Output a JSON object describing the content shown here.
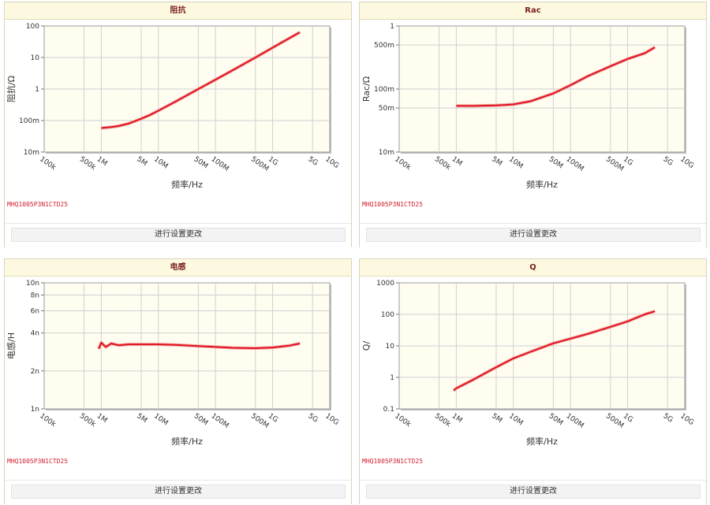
{
  "panels": [
    {
      "title": "阻抗",
      "part_number": "MHQ1005P3N1CTD25",
      "settings_button": "进行设置更改"
    },
    {
      "title": "Rac",
      "part_number": "MHQ1005P3N1CTD25",
      "settings_button": "进行设置更改"
    },
    {
      "title": "电感",
      "part_number": "MHQ1005P3N1CTD25",
      "settings_button": "进行设置更改"
    },
    {
      "title": "Q",
      "part_number": "MHQ1005P3N1CTD25",
      "settings_button": "进行设置更改"
    }
  ],
  "colors": {
    "series": "#e0141e",
    "plot_bg": "#fffdf0",
    "grid": "#cfcfcf"
  },
  "chart_data": [
    {
      "type": "line",
      "title": "阻抗",
      "xlabel": "频率/Hz",
      "ylabel": "阻抗/Ω",
      "x_scale": "log",
      "y_scale": "log",
      "xlim": [
        100000,
        10000000000
      ],
      "ylim": [
        0.01,
        100
      ],
      "x_ticks": [
        100000,
        500000,
        1000000,
        5000000,
        10000000,
        50000000,
        100000000,
        500000000,
        1000000000,
        5000000000,
        10000000000
      ],
      "x_tick_labels": [
        "100k",
        "500k",
        "1M",
        "5M",
        "10M",
        "50M",
        "100M",
        "500M",
        "1G",
        "5G",
        "10G"
      ],
      "y_ticks": [
        0.01,
        0.1,
        1,
        10,
        100
      ],
      "y_tick_labels": [
        "10m",
        "100m",
        "1",
        "10",
        "100"
      ],
      "grid": true,
      "series": [
        {
          "x": [
            1000000,
            1500000,
            2000000,
            3000000,
            5000000,
            7000000,
            10000000,
            20000000,
            50000000,
            100000000,
            200000000,
            500000000,
            1000000000,
            2000000000,
            3000000000
          ],
          "y": [
            0.058,
            0.062,
            0.067,
            0.08,
            0.114,
            0.148,
            0.205,
            0.4,
            1.0,
            1.98,
            3.95,
            10.0,
            20.5,
            42.0,
            63.0
          ]
        }
      ]
    },
    {
      "type": "line",
      "title": "Rac",
      "xlabel": "频率/Hz",
      "ylabel": "Rac/Ω",
      "x_scale": "log",
      "y_scale": "log",
      "xlim": [
        100000,
        10000000000
      ],
      "ylim": [
        0.01,
        1
      ],
      "x_ticks": [
        100000,
        500000,
        1000000,
        5000000,
        10000000,
        50000000,
        100000000,
        500000000,
        1000000000,
        5000000000,
        10000000000
      ],
      "x_tick_labels": [
        "100k",
        "500k",
        "1M",
        "5M",
        "10M",
        "50M",
        "100M",
        "500M",
        "1G",
        "5G",
        "10G"
      ],
      "y_ticks": [
        0.01,
        0.05,
        0.1,
        0.5,
        1
      ],
      "y_tick_labels": [
        "10m",
        "50m",
        "100m",
        "500m",
        "1"
      ],
      "grid": true,
      "series": [
        {
          "x": [
            1000000,
            2000000,
            5000000,
            10000000,
            20000000,
            50000000,
            100000000,
            200000000,
            500000000,
            1000000000,
            2000000000,
            3000000000
          ],
          "y": [
            0.054,
            0.054,
            0.055,
            0.057,
            0.064,
            0.085,
            0.115,
            0.16,
            0.23,
            0.3,
            0.37,
            0.46
          ]
        }
      ]
    },
    {
      "type": "line",
      "title": "电感",
      "xlabel": "频率/Hz",
      "ylabel": "电感/H",
      "x_scale": "log",
      "y_scale": "log",
      "xlim": [
        100000,
        10000000000
      ],
      "ylim": [
        1e-09,
        1e-08
      ],
      "x_ticks": [
        100000,
        500000,
        1000000,
        5000000,
        10000000,
        50000000,
        100000000,
        500000000,
        1000000000,
        5000000000,
        10000000000
      ],
      "x_tick_labels": [
        "100k",
        "500k",
        "1M",
        "5M",
        "10M",
        "50M",
        "100M",
        "500M",
        "1G",
        "5G",
        "10G"
      ],
      "y_ticks": [
        1e-09,
        2e-09,
        4e-09,
        6e-09,
        8e-09,
        1e-08
      ],
      "y_tick_labels": [
        "1n",
        "2n",
        "4n",
        "6n",
        "8n",
        "10n"
      ],
      "grid": true,
      "series": [
        {
          "x": [
            900000,
            1000000,
            1200000,
            1500000,
            2000000,
            3000000,
            5000000,
            10000000,
            20000000,
            50000000,
            100000000,
            200000000,
            500000000,
            1000000000,
            2000000000,
            3000000000
          ],
          "y": [
            3e-09,
            3.35e-09,
            3.1e-09,
            3.3e-09,
            3.2e-09,
            3.25e-09,
            3.25e-09,
            3.25e-09,
            3.22e-09,
            3.15e-09,
            3.1e-09,
            3.05e-09,
            3.03e-09,
            3.07e-09,
            3.18e-09,
            3.3e-09
          ]
        }
      ]
    },
    {
      "type": "line",
      "title": "Q",
      "xlabel": "频率/Hz",
      "ylabel": "Q/",
      "x_scale": "log",
      "y_scale": "log",
      "xlim": [
        100000,
        10000000000
      ],
      "ylim": [
        0.1,
        1000
      ],
      "x_ticks": [
        100000,
        500000,
        1000000,
        5000000,
        10000000,
        50000000,
        100000000,
        500000000,
        1000000000,
        5000000000,
        10000000000
      ],
      "x_tick_labels": [
        "100k",
        "500k",
        "1M",
        "5M",
        "10M",
        "50M",
        "100M",
        "500M",
        "1G",
        "5G",
        "10G"
      ],
      "y_ticks": [
        0.1,
        1,
        10,
        100,
        1000
      ],
      "y_tick_labels": [
        "0.1",
        "1",
        "10",
        "100",
        "1000"
      ],
      "grid": true,
      "series": [
        {
          "x": [
            900000,
            1000000,
            2000000,
            5000000,
            10000000,
            20000000,
            50000000,
            100000000,
            200000000,
            500000000,
            1000000000,
            2000000000,
            3000000000
          ],
          "y": [
            0.38,
            0.45,
            0.85,
            2.1,
            4.0,
            6.5,
            12.0,
            17.0,
            24.0,
            40.0,
            60.0,
            100.0,
            125.0
          ]
        }
      ]
    }
  ]
}
